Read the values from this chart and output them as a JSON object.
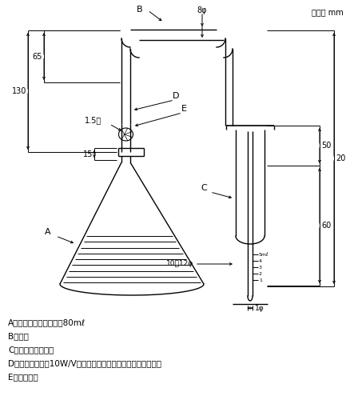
{
  "unit_label": "単位： mm",
  "legend_lines": [
    "A：ひ化水素発生びん　80mℓ",
    "B：導管",
    "C：ひ化水素吸収管",
    "D：酢酸鉛溶液（10W/V％）で湿したガラスウールを詰める。",
    "E：ゴムせん"
  ],
  "bg_color": "#ffffff",
  "line_color": "#000000"
}
